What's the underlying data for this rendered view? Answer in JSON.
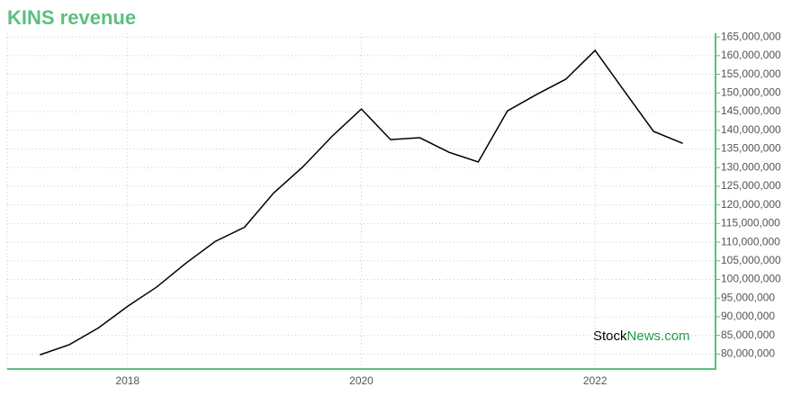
{
  "chart_data": {
    "type": "line",
    "title": "KINS revenue",
    "x": [
      2017.25,
      2017.5,
      2017.75,
      2018,
      2018.25,
      2018.5,
      2018.75,
      2019,
      2019.25,
      2019.5,
      2019.75,
      2020,
      2020.25,
      2020.5,
      2020.75,
      2021,
      2021.25,
      2021.5,
      2021.75,
      2022,
      2022.25,
      2022.5,
      2022.75
    ],
    "series": [
      {
        "name": "KINS revenue",
        "color": "#000000",
        "values": [
          79800000,
          82500000,
          87000000,
          92800000,
          98000000,
          104400000,
          110200000,
          114000000,
          123200000,
          130200000,
          138400000,
          145700000,
          137500000,
          138000000,
          134100000,
          131500000,
          145200000,
          149600000,
          153700000,
          161400000,
          150500000,
          139700000,
          136500000
        ]
      }
    ],
    "xlim": [
      2016.97,
      2023.03
    ],
    "xticks": [
      2018,
      2020,
      2022
    ],
    "ylim": [
      76000000,
      166000000
    ],
    "yticks": [
      {
        "value": 80000000,
        "label": "80,000,000"
      },
      {
        "value": 85000000,
        "label": "85,000,000"
      },
      {
        "value": 90000000,
        "label": "90,000,000"
      },
      {
        "value": 95000000,
        "label": "95,000,000"
      },
      {
        "value": 100000000,
        "label": "100,000,000"
      },
      {
        "value": 105000000,
        "label": "105,000,000"
      },
      {
        "value": 110000000,
        "label": "110,000,000"
      },
      {
        "value": 115000000,
        "label": "115,000,000"
      },
      {
        "value": 120000000,
        "label": "120,000,000"
      },
      {
        "value": 125000000,
        "label": "125,000,000"
      },
      {
        "value": 130000000,
        "label": "130,000,000"
      },
      {
        "value": 135000000,
        "label": "135,000,000"
      },
      {
        "value": 140000000,
        "label": "140,000,000"
      },
      {
        "value": 145000000,
        "label": "145,000,000"
      },
      {
        "value": 150000000,
        "label": "150,000,000"
      },
      {
        "value": 155000000,
        "label": "155,000,000"
      },
      {
        "value": 160000000,
        "label": "160,000,000"
      },
      {
        "value": 165000000,
        "label": "165,000,000"
      }
    ],
    "grid": true,
    "axis_color": "#5cbf7f",
    "watermark": [
      "Stock",
      "News.com"
    ]
  }
}
